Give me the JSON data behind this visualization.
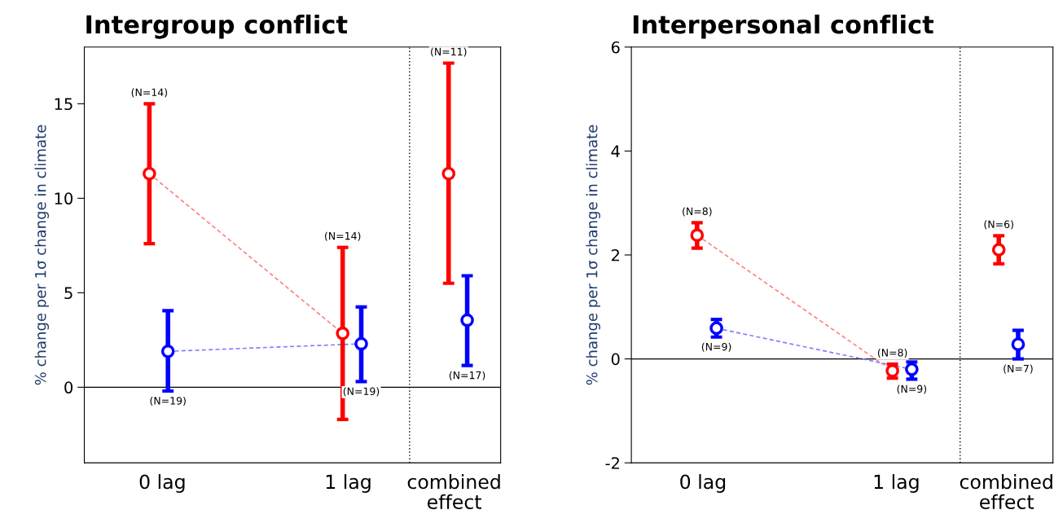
{
  "chart_data": [
    {
      "type": "scatter",
      "title": "Intergroup conflict",
      "ylabel": "% change per 1σ change in climate",
      "grid": false,
      "legend": false,
      "xlim": [
        -0.42,
        1.82
      ],
      "xticks": [
        {
          "value": 0,
          "label": "0 lag"
        },
        {
          "value": 1,
          "label": "1 lag"
        },
        {
          "value": 1.57,
          "label": "combined\neffect"
        }
      ],
      "ylim": [
        -4,
        18
      ],
      "yticks": [
        0,
        5,
        10,
        15
      ],
      "series": [
        {
          "type": "line",
          "line_style": "dashed",
          "color": "#ff8080",
          "x": [
            -0.07,
            0.97
          ],
          "values": [
            11.3,
            2.85
          ]
        },
        {
          "type": "line",
          "line_style": "dashed",
          "color": "#8080ff",
          "x": [
            0.03,
            1.07
          ],
          "values": [
            1.9,
            2.3
          ]
        },
        {
          "marker": "circle",
          "color": "#ff0000",
          "x": [
            -0.07,
            0.97,
            1.54
          ],
          "values": [
            11.3,
            2.85,
            11.3
          ],
          "errors": [
            [
              7.6,
              15.0
            ],
            [
              -1.7,
              7.4
            ],
            [
              5.5,
              17.15
            ]
          ]
        },
        {
          "marker": "circle",
          "color": "#0000ff",
          "x": [
            0.03,
            1.07,
            1.64
          ],
          "values": [
            1.9,
            2.3,
            3.55
          ],
          "errors": [
            [
              -0.2,
              4.05
            ],
            [
              0.3,
              4.25
            ],
            [
              1.15,
              5.9
            ]
          ]
        }
      ],
      "ref_lines": [
        {
          "axis": "y",
          "value": 0,
          "color": "#000000",
          "line_style": "solid"
        },
        {
          "axis": "x",
          "value": 1.33,
          "color": "#000000",
          "line_style": "dotted"
        }
      ],
      "annotations": [
        "(N=14)",
        "(N=14)",
        "(N=11)",
        "(N=19)",
        "(N=19)",
        "(N=17)"
      ]
    },
    {
      "type": "scatter",
      "title": "Interpersonal conflict",
      "ylabel": "% change per 1σ change in climate",
      "grid": false,
      "legend": false,
      "xlim": [
        -0.37,
        1.81
      ],
      "xticks": [
        {
          "value": 0,
          "label": "0 lag"
        },
        {
          "value": 1,
          "label": "1 lag"
        },
        {
          "value": 1.57,
          "label": "combined\neffect"
        }
      ],
      "ylim": [
        -2,
        6
      ],
      "yticks": [
        -2,
        0,
        2,
        4,
        6
      ],
      "series": [
        {
          "type": "line",
          "line_style": "dashed",
          "color": "#ff8080",
          "x": [
            -0.03,
            0.98
          ],
          "values": [
            2.38,
            -0.23
          ]
        },
        {
          "type": "line",
          "line_style": "dashed",
          "color": "#8080ff",
          "x": [
            0.07,
            1.08
          ],
          "values": [
            0.59,
            -0.2
          ]
        },
        {
          "marker": "circle",
          "color": "#ff0000",
          "x": [
            -0.03,
            0.98,
            1.53
          ],
          "values": [
            2.38,
            -0.23,
            2.1
          ],
          "errors": [
            [
              2.13,
              2.62
            ],
            [
              -0.37,
              -0.1
            ],
            [
              1.83,
              2.37
            ]
          ]
        },
        {
          "marker": "circle",
          "color": "#0000ff",
          "x": [
            0.07,
            1.08,
            1.63
          ],
          "values": [
            0.59,
            -0.2,
            0.28
          ],
          "errors": [
            [
              0.42,
              0.76
            ],
            [
              -0.39,
              -0.06
            ],
            [
              0.0,
              0.55
            ]
          ]
        }
      ],
      "ref_lines": [
        {
          "axis": "y",
          "value": 0,
          "color": "#000000",
          "line_style": "solid"
        },
        {
          "axis": "x",
          "value": 1.33,
          "color": "#000000",
          "line_style": "dotted"
        }
      ],
      "annotations": [
        "(N=8)",
        "(N=8)",
        "(N=6)",
        "(N=9)",
        "(N=9)",
        "(N=7)"
      ]
    }
  ]
}
